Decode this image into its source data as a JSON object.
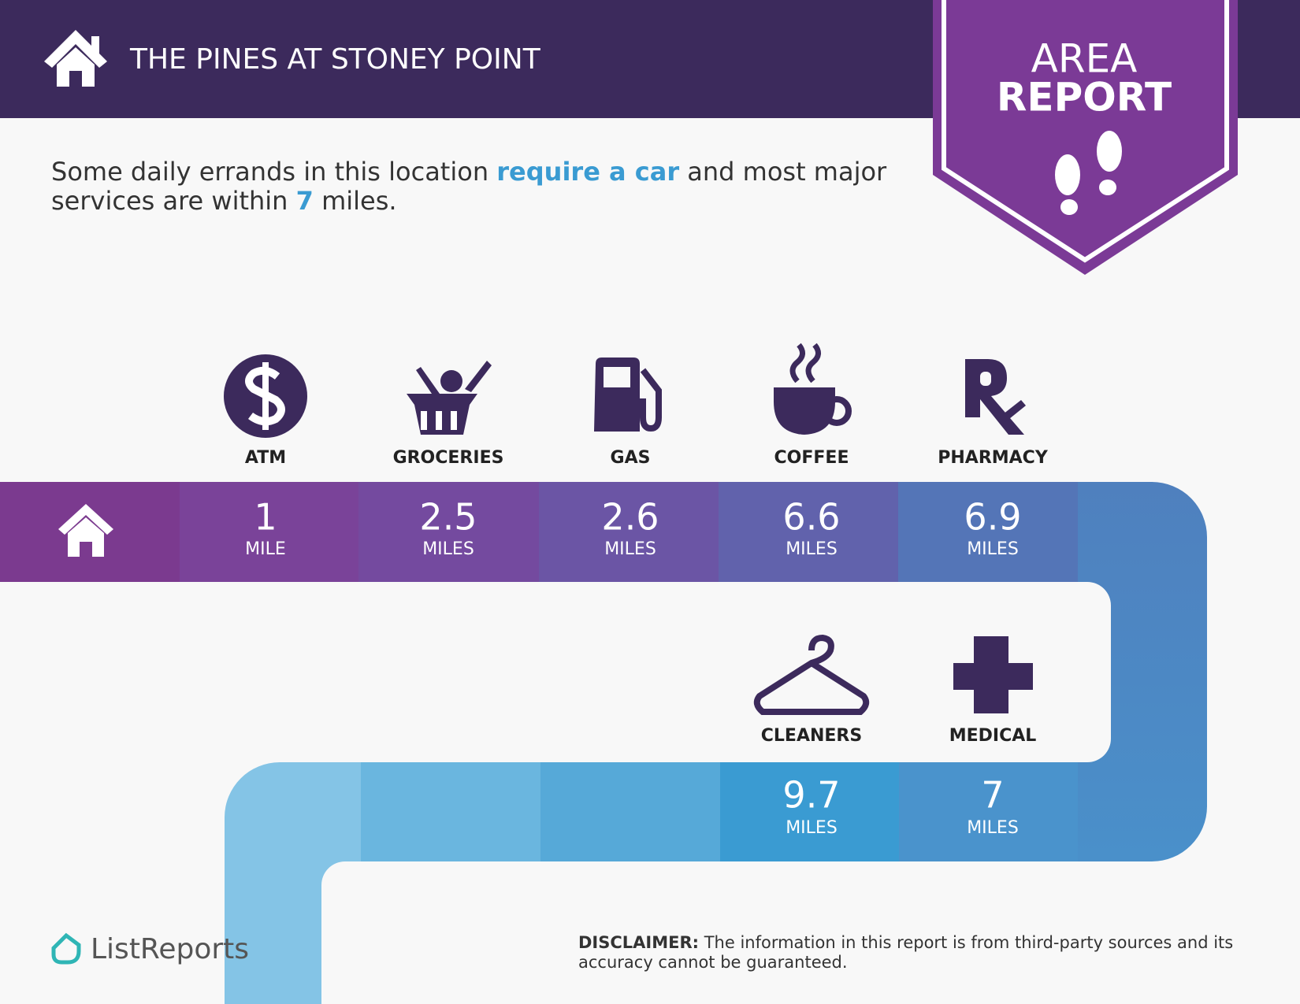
{
  "header": {
    "title": "THE PINES AT STONEY POINT",
    "badge": [
      "AREA",
      "REPORT"
    ]
  },
  "summary": {
    "parts": [
      "Some daily errands in this location ",
      "require a car",
      " and most major services are within ",
      "7",
      " miles."
    ]
  },
  "services": [
    {
      "name": "ATM",
      "distance": 1,
      "unit": "MILE"
    },
    {
      "name": "GROCERIES",
      "distance": 2.5,
      "unit": "MILES"
    },
    {
      "name": "GAS",
      "distance": 2.6,
      "unit": "MILES"
    },
    {
      "name": "COFFEE",
      "distance": 6.6,
      "unit": "MILES"
    },
    {
      "name": "PHARMACY",
      "distance": 6.9,
      "unit": "MILES"
    },
    {
      "name": "CLEANERS",
      "distance": 9.7,
      "unit": "MILES"
    },
    {
      "name": "MEDICAL",
      "distance": 7,
      "unit": "MILES"
    }
  ],
  "footer": {
    "brand": "ListReports",
    "disclaimer_label": "DISCLAIMER:",
    "disclaimer": " The information in this report is from third-party sources and its accuracy cannot be guaranteed."
  }
}
